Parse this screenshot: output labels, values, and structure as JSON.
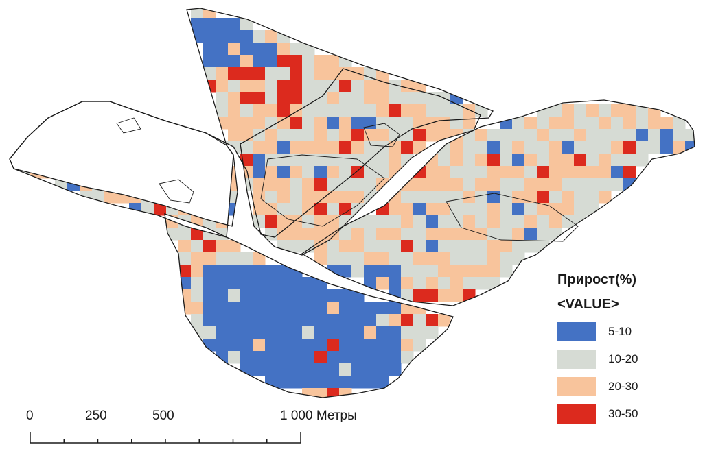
{
  "legend": {
    "title": "Прирост(%)",
    "subtitle": "<VALUE>",
    "classes": [
      {
        "label": "5-10",
        "color": "#4472c4"
      },
      {
        "label": "10-20",
        "color": "#d6dbd4"
      },
      {
        "label": "20-30",
        "color": "#f8c49c"
      },
      {
        "label": "30-50",
        "color": "#dc2a1e"
      }
    ]
  },
  "scale_bar": {
    "ticks": [
      "0",
      "250",
      "500",
      "1 000 Метры"
    ]
  },
  "colors": {
    "background": "#ffffff",
    "boundary": "#1a1a1a"
  }
}
